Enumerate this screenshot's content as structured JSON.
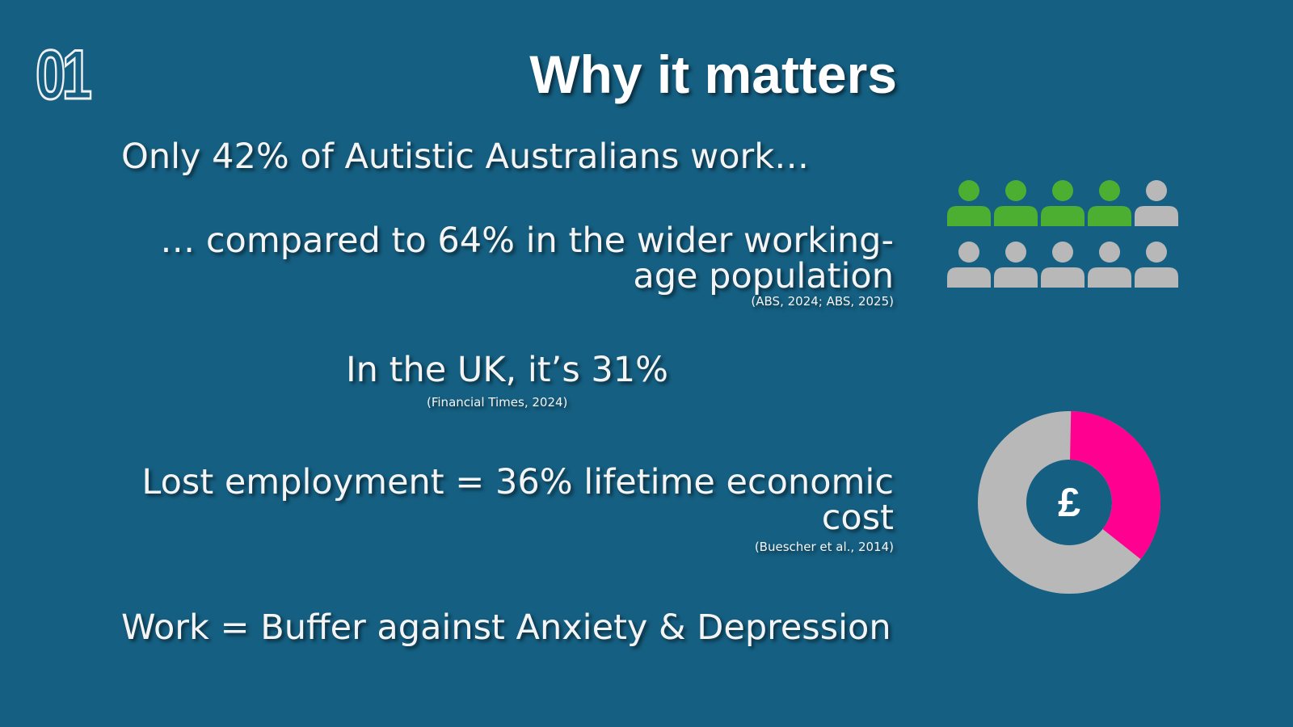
{
  "slide": {
    "number": "01",
    "title": "Why it matters"
  },
  "stats": {
    "s1": "Only 42% of Autistic Australians work…",
    "s2_line1": "… compared to 64% in the wider working-",
    "s2_line2": "age population",
    "s2_citation": "(ABS, 2024; ABS, 2025)",
    "s3": "In the UK, it’s 31%",
    "s3_citation": "(Financial Times, 2024)",
    "s4_line1": "Lost employment = 36% lifetime economic",
    "s4_line2": "cost",
    "s4_citation": "(Buescher et al., 2014)",
    "s5": "Work = Buffer against Anxiety & Depression"
  },
  "people_graphic": {
    "icon": "person-icon",
    "total": 10,
    "highlighted": 4,
    "highlight_color": "#4caf32",
    "base_color": "#b8b8b8"
  },
  "donut_graphic": {
    "icon": "pound-icon",
    "center_symbol": "£",
    "fraction": 0.36,
    "highlight_color": "#ff0090",
    "base_color": "#b8b8b8"
  }
}
